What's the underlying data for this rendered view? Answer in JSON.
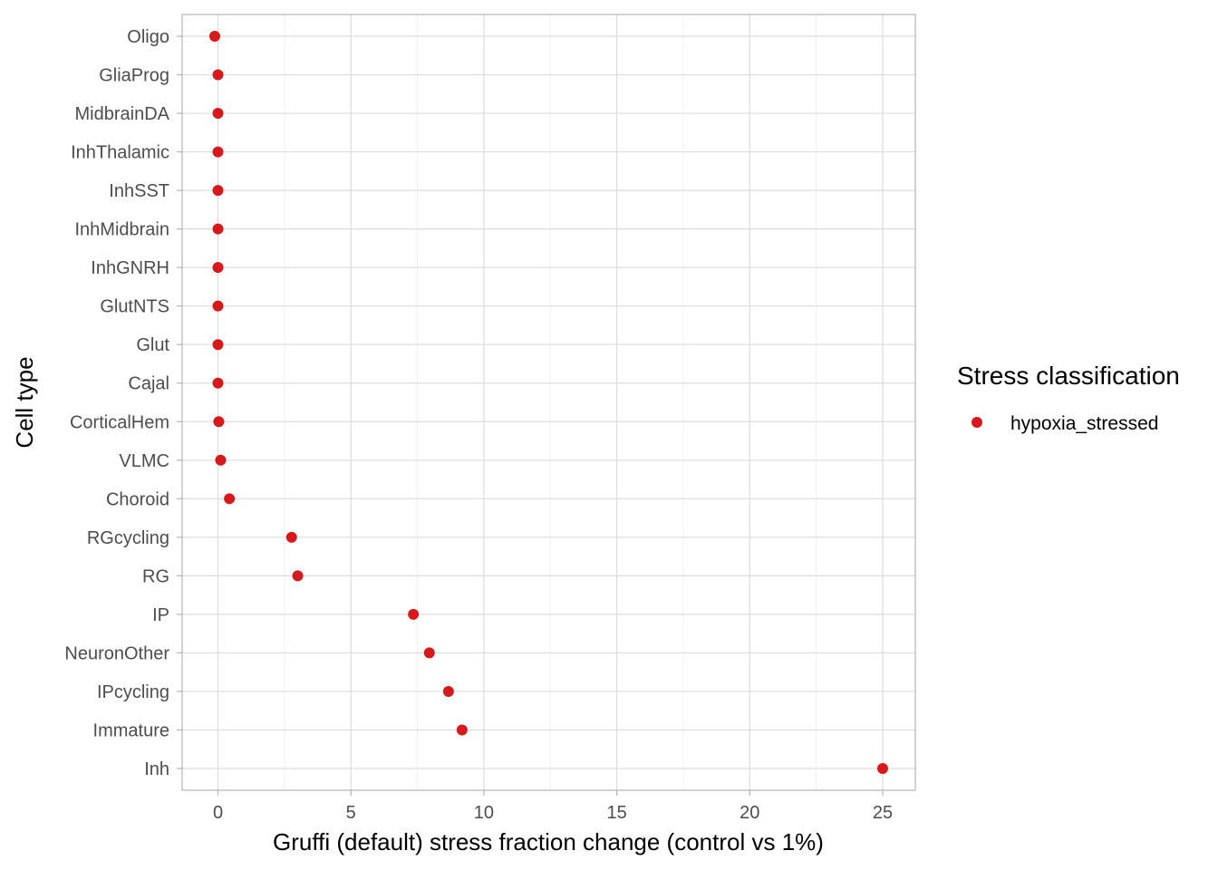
{
  "chart_data": {
    "type": "scatter",
    "xlabel": "Gruffi (default) stress fraction change (control vs 1%)",
    "ylabel": "Cell type",
    "xlim": [
      -1.3,
      26.3
    ],
    "xticks": [
      0,
      5,
      10,
      15,
      20,
      25
    ],
    "categories": [
      "Oligo",
      "GliaProg",
      "MidbrainDA",
      "InhThalamic",
      "InhSST",
      "InhMidbrain",
      "InhGNRH",
      "GlutNTS",
      "Glut",
      "Cajal",
      "CorticalHem",
      "VLMC",
      "Choroid",
      "RGcycling",
      "RG",
      "IP",
      "NeuronOther",
      "IPcycling",
      "Immature",
      "Inh"
    ],
    "series": [
      {
        "name": "hypoxia_stressed",
        "color": "#d7191c",
        "values": [
          -0.12,
          0.0,
          0.0,
          0.0,
          0.0,
          0.0,
          0.0,
          0.0,
          0.0,
          0.0,
          0.03,
          0.1,
          0.43,
          2.77,
          3.0,
          7.35,
          7.95,
          8.67,
          9.18,
          25.0
        ]
      }
    ],
    "legend": {
      "title": "Stress classification",
      "position": "right"
    },
    "grid": true
  }
}
